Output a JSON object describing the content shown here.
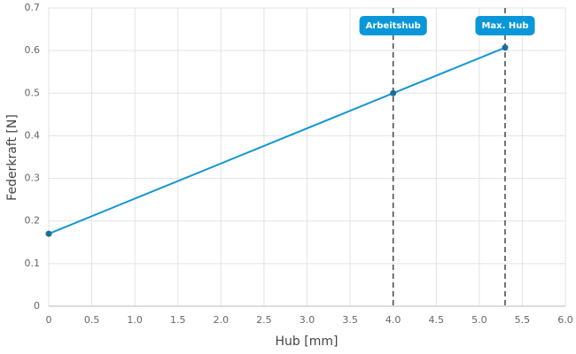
{
  "chart_data": {
    "type": "line",
    "x_label": "Hub [mm]",
    "y_label": "Federkraft [N]",
    "x": [
      0,
      4,
      5.3
    ],
    "values": [
      0.17,
      0.5,
      0.607
    ],
    "color": "#1596d3",
    "marker_color": "#1a6e9c",
    "xlim": [
      0,
      6
    ],
    "ylim": [
      0,
      0.7
    ],
    "xticks": [
      0,
      0.5,
      {
        "value": 1,
        "label": "1.0"
      },
      1.5,
      {
        "value": 2,
        "label": "2.0"
      },
      2.5,
      {
        "value": 3,
        "label": "3.0"
      },
      3.5,
      {
        "value": 4,
        "label": "4.0"
      },
      4.5,
      {
        "value": 5,
        "label": "5.0"
      },
      5.5,
      {
        "value": 6,
        "label": "6.0"
      }
    ],
    "yticks": [
      0,
      0.1,
      0.2,
      0.3,
      0.4,
      0.5,
      0.6,
      0.7
    ],
    "grid": true,
    "annotations": [
      {
        "x": 4,
        "label": "Arbeitshub"
      },
      {
        "x": 5.3,
        "label": "Max. Hub"
      }
    ],
    "annotation_color": "#0a97d9"
  }
}
